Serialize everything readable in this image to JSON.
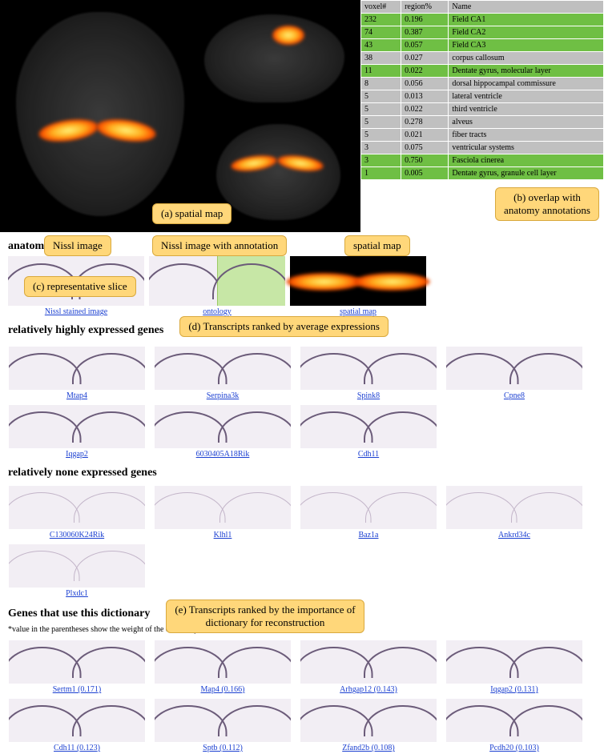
{
  "colors": {
    "highlight_green": "#6fbf44",
    "row_gray": "#c0c0c0",
    "header_gray": "#bfbfbf",
    "callout_bg": "#ffd77a",
    "callout_border": "#d9a93e",
    "link": "#1a3fd1",
    "viz_bg": "#000000",
    "brain_fill": "#2a2a2a",
    "heat_gradient": [
      "#fff27a",
      "#ffb020",
      "#ff5a00",
      "#8b0000"
    ]
  },
  "callouts": {
    "a": "(a) spatial map",
    "b": "(b) overlap with\nanatomy annotations",
    "c": "(c) representative slice",
    "d": "(d) Transcripts ranked by average expressions",
    "e": "(e) Transcripts ranked by the importance of\ndictionary for reconstruction",
    "nissl": "Nissl image",
    "nissl_annot": "Nissl image with annotation",
    "spatial": "spatial map"
  },
  "region_table": {
    "headers": [
      "voxel#",
      "region%",
      "Name"
    ],
    "rows": [
      {
        "voxel": "232",
        "region": "0.196",
        "name": "Field CA1",
        "hl": true
      },
      {
        "voxel": "74",
        "region": "0.387",
        "name": "Field CA2",
        "hl": true
      },
      {
        "voxel": "43",
        "region": "0.057",
        "name": "Field CA3",
        "hl": true
      },
      {
        "voxel": "38",
        "region": "0.027",
        "name": "corpus callosum",
        "hl": false
      },
      {
        "voxel": "11",
        "region": "0.022",
        "name": "Dentate gyrus, molecular layer",
        "hl": true
      },
      {
        "voxel": "8",
        "region": "0.056",
        "name": "dorsal hippocampal commissure",
        "hl": false
      },
      {
        "voxel": "5",
        "region": "0.013",
        "name": "lateral ventricle",
        "hl": false
      },
      {
        "voxel": "5",
        "region": "0.022",
        "name": "third ventricle",
        "hl": false
      },
      {
        "voxel": "5",
        "region": "0.278",
        "name": "alveus",
        "hl": false
      },
      {
        "voxel": "5",
        "region": "0.021",
        "name": "fiber tracts",
        "hl": false
      },
      {
        "voxel": "3",
        "region": "0.075",
        "name": "ventricular systems",
        "hl": false
      },
      {
        "voxel": "3",
        "region": "0.750",
        "name": "Fasciola cinerea",
        "hl": true
      },
      {
        "voxel": "1",
        "region": "0.005",
        "name": "Dentate gyrus, granule cell layer",
        "hl": true
      }
    ]
  },
  "sections": {
    "anatomy": "anatomy",
    "high": "relatively highly expressed genes",
    "none": "relatively none expressed genes",
    "dict": "Genes that use this dictionary",
    "dict_note": "*value in the parentheses show the weight of the dictionary"
  },
  "anatomy_links": {
    "nissl": "Nissl stained image",
    "ontology": "ontology",
    "spatial": "spatial map"
  },
  "genes_high": [
    "Mtap4",
    "Serpina3k",
    "Spink8",
    "Cpne8",
    "Iqgap2",
    "6030405A18Rik",
    "Cdh11"
  ],
  "genes_none": [
    "C130060K24Rik",
    "Klhl1",
    "Baz1a",
    "Ankrd34c",
    "Plxdc1"
  ],
  "genes_dict": [
    "Sertm1 (0.171)",
    "Map4 (0.166)",
    "Arhgap12 (0.143)",
    "Iqgap2 (0.131)",
    "Cdh11 (0.123)",
    "Sptb (0.112)",
    "Zfand2b (0.108)",
    "Pcdh20 (0.103)"
  ]
}
